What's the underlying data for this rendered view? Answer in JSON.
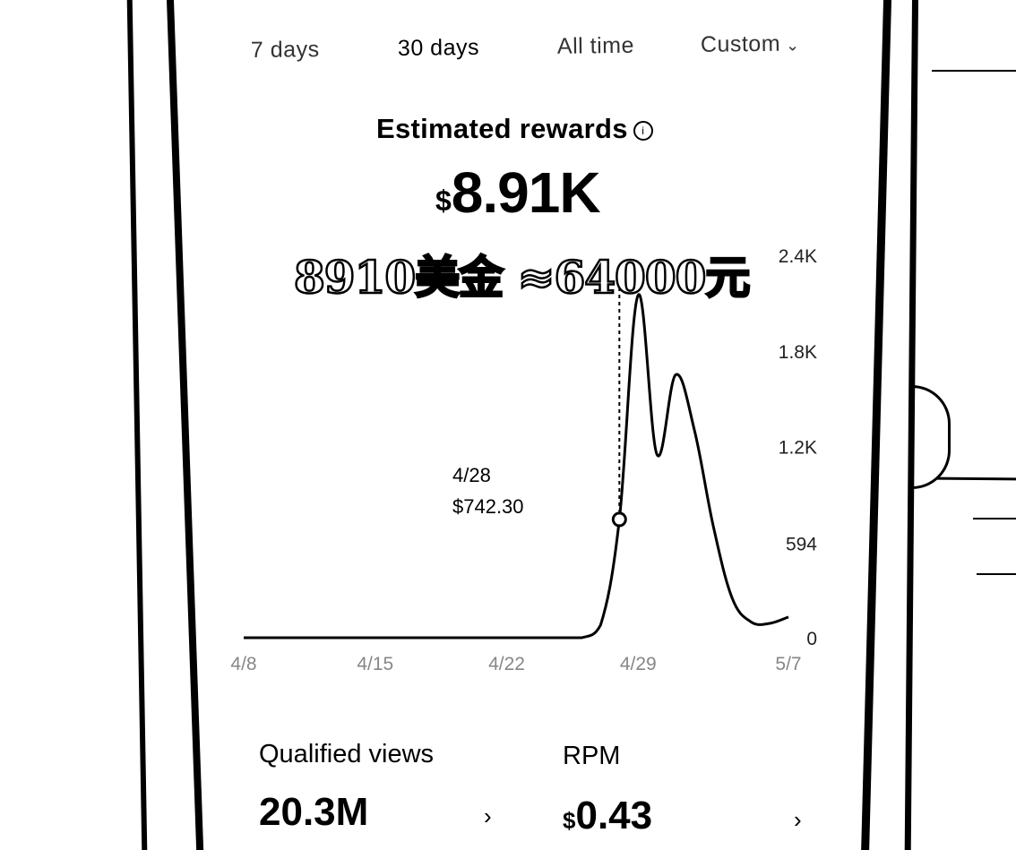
{
  "tabs": [
    {
      "label": "7 days"
    },
    {
      "label": "30 days"
    },
    {
      "label": "All time"
    },
    {
      "label": "Custom"
    }
  ],
  "active_tab": "30 days",
  "metric": {
    "title": "Estimated rewards",
    "currency": "$",
    "value": "8.91K"
  },
  "annotation": {
    "text": "8910美金 ≈64000元"
  },
  "tooltip": {
    "date": "4/28",
    "value": "$742.30"
  },
  "chart_data": {
    "type": "line",
    "x_tick_labels": [
      "4/8",
      "4/15",
      "4/22",
      "4/29",
      "5/7"
    ],
    "y_tick_labels": [
      "0",
      "594",
      "1.2K",
      "1.8K",
      "2.4K"
    ],
    "ylim": [
      0,
      2400
    ],
    "series": [
      {
        "x": [
          "4/8",
          "4/15",
          "4/22",
          "4/25",
          "4/26",
          "4/27",
          "4/28",
          "4/29",
          "4/30",
          "5/1",
          "5/2",
          "5/3",
          "5/4",
          "5/5",
          "5/6",
          "5/7"
        ],
        "values": [
          0,
          0,
          0,
          0,
          0,
          80,
          742.3,
          2150,
          1150,
          1650,
          1300,
          700,
          250,
          100,
          90,
          130
        ]
      }
    ],
    "grid": false,
    "y_axis_position": "right"
  },
  "stats": {
    "qualified_views": {
      "label": "Qualified views",
      "value": "20.3M"
    },
    "rpm": {
      "label": "RPM",
      "currency": "$",
      "value": "0.43"
    }
  },
  "icons": {
    "chevron": "›",
    "dropdown": "⌄",
    "info": "ⓘ"
  }
}
